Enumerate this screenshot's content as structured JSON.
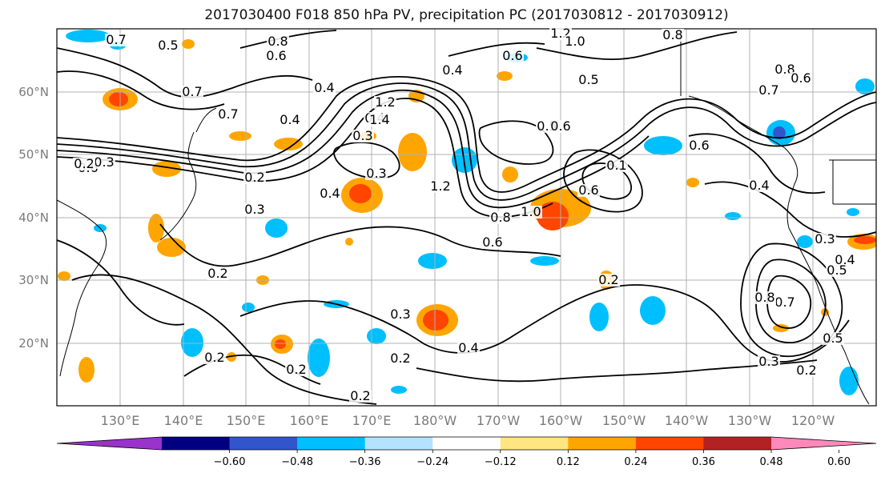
{
  "title": "2017030400 F018 850 hPa PV, precipitation PC (2017030812 - 2017030912)",
  "lat_labels": [
    "60°N",
    "50°N",
    "40°N",
    "30°N",
    "20°N"
  ],
  "lon_labels": [
    "130°E",
    "140°E",
    "150°E",
    "160°E",
    "170°E",
    "180°W",
    "170°W",
    "160°W",
    "150°W",
    "140°W",
    "130°W",
    "120°W"
  ],
  "colorbar": {
    "colors": [
      "#9933cc",
      "#000080",
      "#3355cc",
      "#00bfff",
      "#b3e3ff",
      "#ffffff",
      "#ffe680",
      "#ffa500",
      "#ff4500",
      "#b22222",
      "#ff88bb"
    ],
    "ticks": [
      "−0.60",
      "−0.48",
      "−0.36",
      "−0.24",
      "−0.12",
      "0.12",
      "0.24",
      "0.36",
      "0.48",
      "0.60"
    ]
  },
  "contour_labels": [
    "0.7",
    "0.5",
    "0.8",
    "0.6",
    "1.2",
    "1.0",
    "0.8",
    "0.4",
    "0.4",
    "0.5",
    "0.6",
    "0.5",
    "0.7",
    "0.8",
    "0.7",
    "0.6",
    "0.4",
    "1.2",
    "1.4",
    "0.4",
    "0.3",
    "0.6",
    "0.7",
    "0.6",
    "0.3",
    "0.2",
    "0.3",
    "1.2",
    "0.6",
    "0.1",
    "0.4",
    "0.8",
    "1.0",
    "0.6",
    "0.4",
    "0.2",
    "0.3",
    "0.4",
    "0.2",
    "0.2",
    "0.2",
    "0.2",
    "0.2",
    "0.3",
    "0.4",
    "0.5",
    "0.7",
    "0.8",
    "0.6",
    "0.3",
    "0.2",
    "0.5",
    "0.3",
    "0.2"
  ]
}
